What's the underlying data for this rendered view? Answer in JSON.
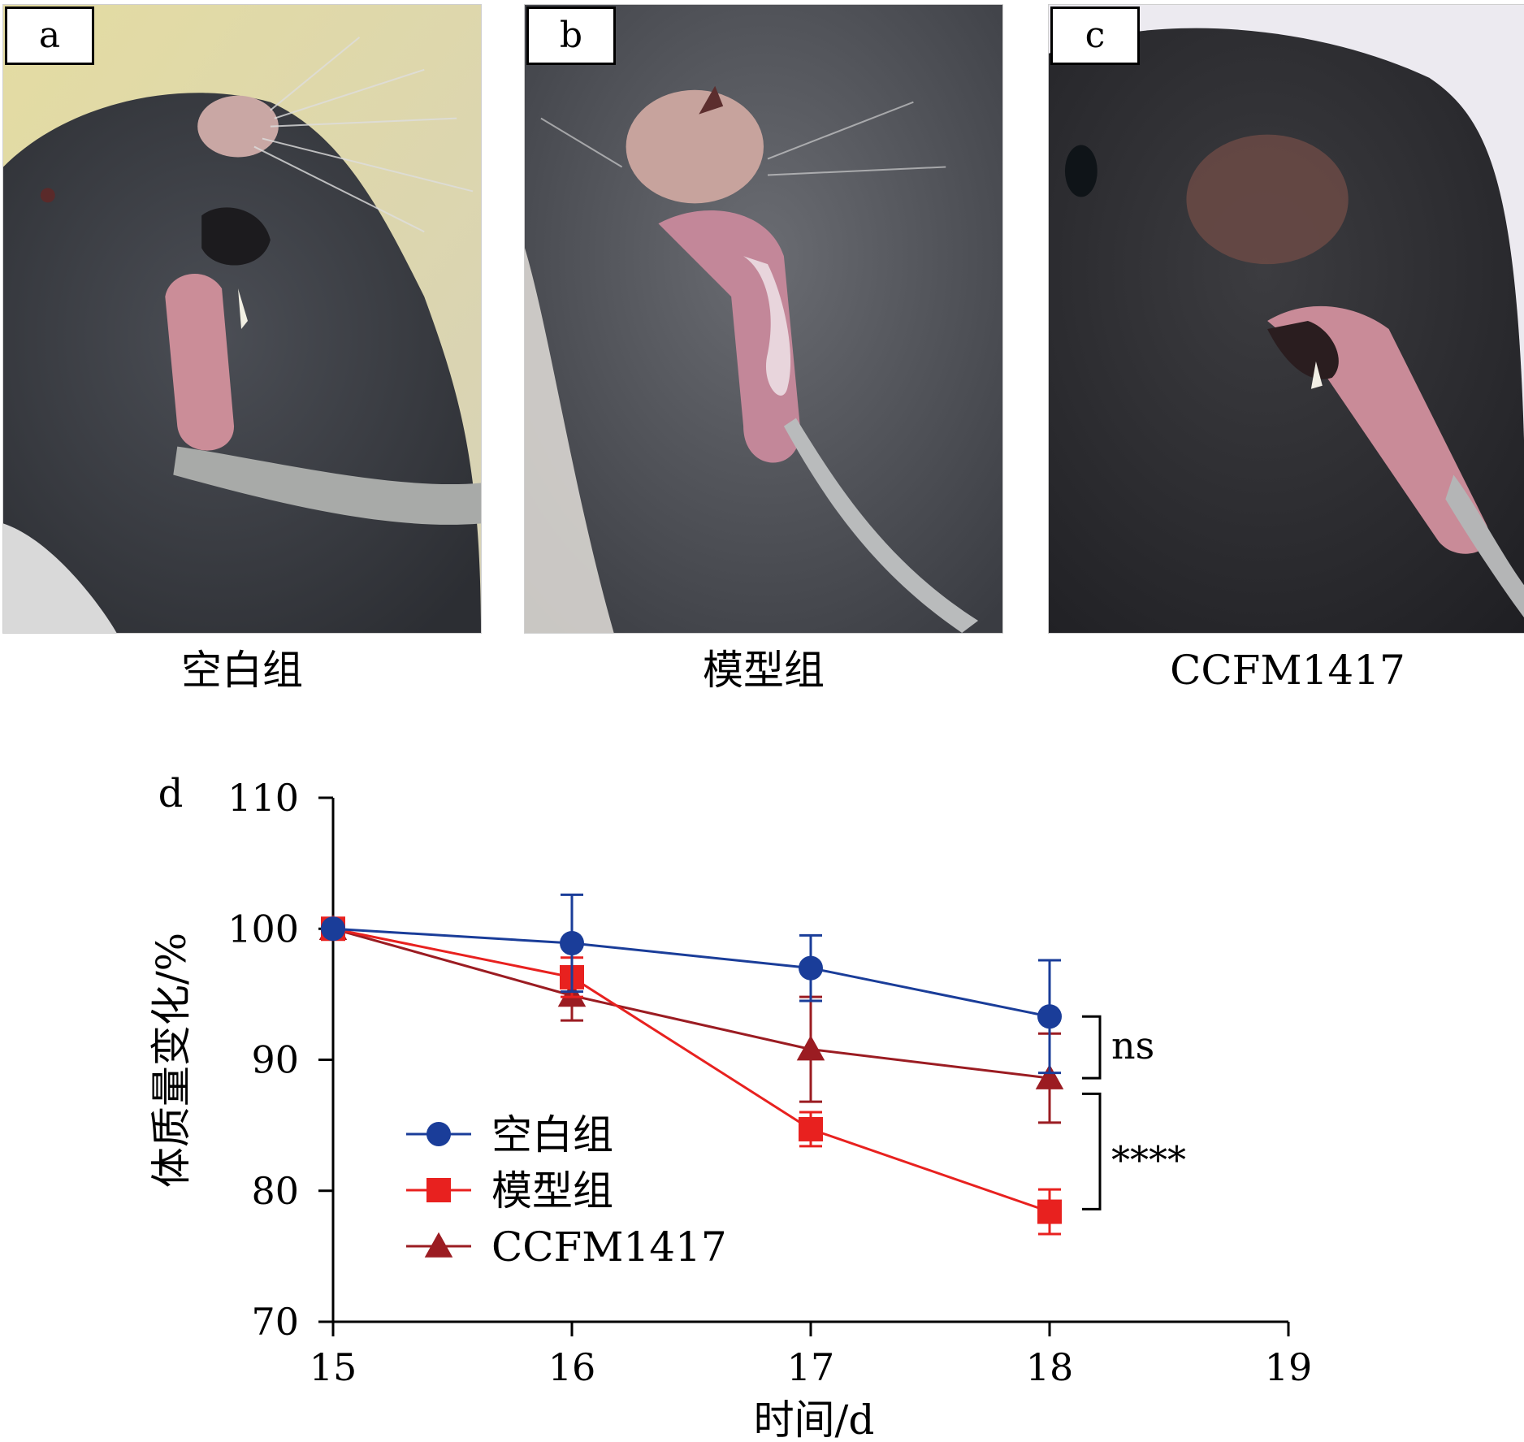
{
  "panels": [
    {
      "label": "a",
      "caption": "空白组",
      "icon": "mouse-tongue-healthy-photo"
    },
    {
      "label": "b",
      "caption": "模型组",
      "icon": "mouse-tongue-ulcer-photo"
    },
    {
      "label": "c",
      "caption": "CCFM1417",
      "icon": "mouse-tongue-treated-photo"
    }
  ],
  "chart_data": {
    "type": "line",
    "panel_label": "d",
    "xlabel": "时间/d",
    "ylabel": "体质量变化/%",
    "x": [
      15,
      16,
      17,
      18
    ],
    "xlim": [
      15,
      19
    ],
    "ylim": [
      70,
      110
    ],
    "xticks": [
      15,
      16,
      17,
      18,
      19
    ],
    "yticks": [
      70,
      80,
      90,
      100,
      110
    ],
    "series": [
      {
        "name": "空白组",
        "marker": "circle",
        "color": "#1a3d99",
        "values": [
          100,
          98.9,
          97.0,
          93.3
        ],
        "err": [
          0,
          3.7,
          2.5,
          4.3
        ]
      },
      {
        "name": "模型组",
        "marker": "square",
        "color": "#e8211f",
        "values": [
          100,
          96.3,
          84.7,
          78.4
        ],
        "err": [
          0,
          1.5,
          1.3,
          1.7
        ]
      },
      {
        "name": "CCFM1417",
        "marker": "triangle",
        "color": "#9b1c22",
        "values": [
          100,
          94.9,
          90.8,
          88.6
        ],
        "err": [
          0,
          1.9,
          4.0,
          3.4
        ]
      }
    ],
    "annotations": [
      {
        "text": "ns",
        "x": 18,
        "between": [
          93.3,
          88.6
        ]
      },
      {
        "text": "****",
        "x": 18,
        "between": [
          87.4,
          78.6
        ]
      }
    ],
    "legend_position": "lower-left"
  }
}
